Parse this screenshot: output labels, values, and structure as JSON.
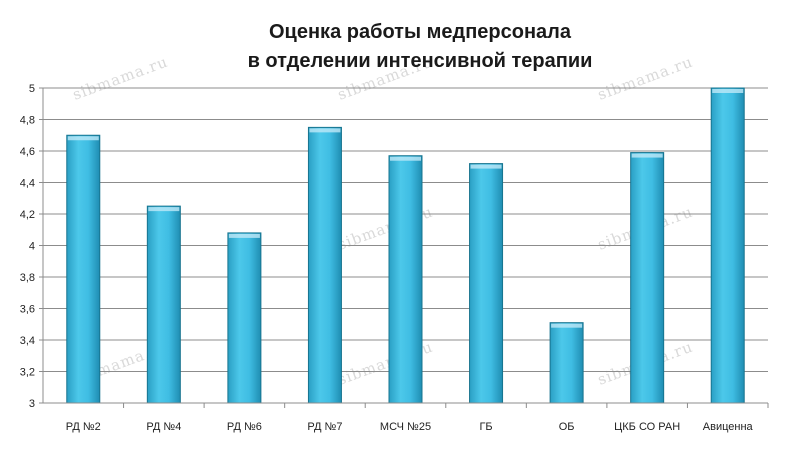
{
  "watermark": "sibmama.ru",
  "colors": {
    "bar_light": "#45c3e6",
    "bar_dark": "#1e90b5",
    "bar_edge": "#17748f",
    "grid": "#8c8c8c"
  },
  "chart_data": {
    "type": "bar",
    "title_lines": [
      "Оценка работы медперсонала",
      "в отделении интенсивной терапии"
    ],
    "categories": [
      "РД №2",
      "РД №4",
      "РД №6",
      "РД №7",
      "МСЧ №25",
      "ГБ",
      "ОБ",
      "ЦКБ СО РАН",
      "Авиценна"
    ],
    "values": [
      4.7,
      4.25,
      4.08,
      4.75,
      4.57,
      4.52,
      3.51,
      4.59,
      5.0
    ],
    "ylim": [
      3,
      5
    ],
    "yticks": [
      "3",
      "3,2",
      "3,4",
      "3,6",
      "3,8",
      "4",
      "4,2",
      "4,4",
      "4,6",
      "4,8",
      "5"
    ],
    "grid": true,
    "legend": "none"
  }
}
